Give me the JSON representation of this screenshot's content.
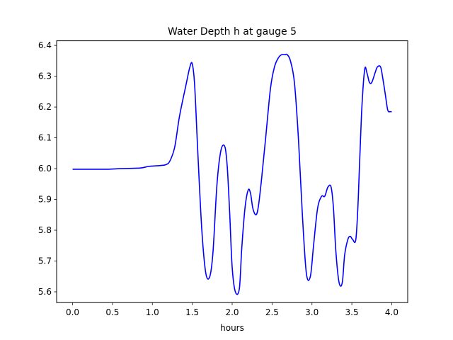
{
  "chart_data": {
    "type": "line",
    "title": "Water Depth h at gauge 5",
    "xlabel": "hours",
    "ylabel": "",
    "xlim": [
      -0.2,
      4.2
    ],
    "ylim": [
      5.565,
      6.415
    ],
    "xticks": [
      0.0,
      0.5,
      1.0,
      1.5,
      2.0,
      2.5,
      3.0,
      3.5,
      4.0
    ],
    "xtick_labels": [
      "0.0",
      "0.5",
      "1.0",
      "1.5",
      "2.0",
      "2.5",
      "3.0",
      "3.5",
      "4.0"
    ],
    "yticks": [
      5.6,
      5.7,
      5.8,
      5.9,
      6.0,
      6.1,
      6.2,
      6.3,
      6.4
    ],
    "ytick_labels": [
      "5.6",
      "5.7",
      "5.8",
      "5.9",
      "6.0",
      "6.1",
      "6.2",
      "6.3",
      "6.4"
    ],
    "grid": false,
    "series": [
      {
        "color": "#0000ff",
        "x": [
          0.0,
          0.2,
          0.45,
          0.6,
          0.85,
          0.95,
          1.1,
          1.17,
          1.22,
          1.28,
          1.34,
          1.42,
          1.47,
          1.5,
          1.53,
          1.57,
          1.62,
          1.67,
          1.72,
          1.76,
          1.81,
          1.86,
          1.91,
          1.94,
          1.97,
          2.0,
          2.04,
          2.09,
          2.12,
          2.16,
          2.2,
          2.23,
          2.26,
          2.3,
          2.33,
          2.37,
          2.42,
          2.48,
          2.53,
          2.58,
          2.62,
          2.66,
          2.69,
          2.73,
          2.78,
          2.83,
          2.88,
          2.93,
          2.98,
          3.02,
          3.07,
          3.12,
          3.16,
          3.2,
          3.24,
          3.27,
          3.3,
          3.34,
          3.38,
          3.41,
          3.45,
          3.48,
          3.51,
          3.55,
          3.58,
          3.62,
          3.66,
          3.69,
          3.72,
          3.75,
          3.79,
          3.82,
          3.86,
          3.89,
          3.92,
          3.95,
          3.98,
          4.0
        ],
        "y": [
          5.998,
          5.998,
          5.998,
          6.0,
          6.002,
          6.007,
          6.01,
          6.013,
          6.025,
          6.07,
          6.17,
          6.27,
          6.33,
          6.34,
          6.27,
          6.05,
          5.8,
          5.66,
          5.65,
          5.73,
          5.95,
          6.06,
          6.07,
          6.0,
          5.85,
          5.68,
          5.6,
          5.61,
          5.74,
          5.87,
          5.93,
          5.92,
          5.87,
          5.85,
          5.88,
          5.97,
          6.1,
          6.26,
          6.33,
          6.36,
          6.37,
          6.37,
          6.37,
          6.35,
          6.28,
          6.1,
          5.85,
          5.66,
          5.65,
          5.75,
          5.87,
          5.91,
          5.91,
          5.94,
          5.94,
          5.87,
          5.73,
          5.63,
          5.63,
          5.72,
          5.77,
          5.78,
          5.77,
          5.77,
          5.9,
          6.17,
          6.32,
          6.31,
          6.28,
          6.28,
          6.31,
          6.33,
          6.33,
          6.29,
          6.24,
          6.19,
          6.185,
          6.185
        ]
      }
    ]
  }
}
